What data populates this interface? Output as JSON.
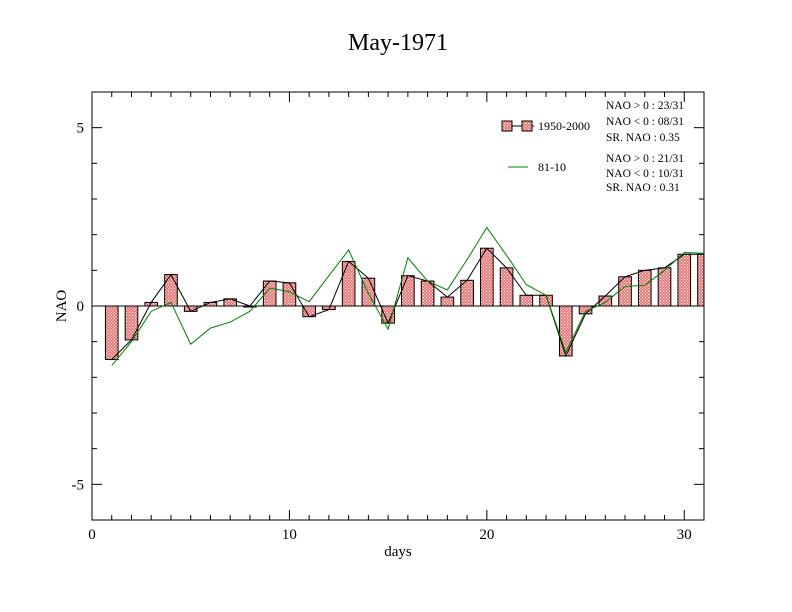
{
  "chart_data": {
    "type": "bar",
    "title": "May-1971",
    "xlabel": "days",
    "ylabel": "NAO",
    "xlim": [
      0,
      31
    ],
    "ylim": [
      -6,
      6
    ],
    "x_ticks": [
      0,
      10,
      20,
      30
    ],
    "y_ticks": [
      -5,
      0,
      5
    ],
    "x_tick_labels": [
      "0",
      "10",
      "20",
      "30"
    ],
    "y_tick_labels": [
      "-5",
      "0",
      "5"
    ],
    "grid": false,
    "legend_position": "top-right",
    "days": [
      1,
      2,
      3,
      4,
      5,
      6,
      7,
      8,
      9,
      10,
      11,
      12,
      13,
      14,
      15,
      16,
      17,
      18,
      19,
      20,
      21,
      22,
      23,
      24,
      25,
      26,
      27,
      28,
      29,
      30,
      31
    ],
    "series": [
      {
        "name": "1950-2000",
        "style": "bars+line",
        "bar_color": "#e87878",
        "line_color": "#000000",
        "values": [
          -1.5,
          -0.95,
          0.1,
          0.88,
          -0.15,
          0.1,
          0.2,
          0.0,
          0.7,
          0.65,
          -0.3,
          -0.1,
          1.25,
          0.78,
          -0.48,
          0.85,
          0.7,
          0.25,
          0.72,
          1.62,
          1.07,
          0.3,
          0.3,
          -1.4,
          -0.22,
          0.28,
          0.82,
          1.0,
          1.07,
          1.45,
          1.45
        ]
      },
      {
        "name": "81-10",
        "style": "line",
        "line_color": "#008000",
        "values": [
          -1.67,
          -1.0,
          -0.15,
          0.1,
          -1.07,
          -0.62,
          -0.45,
          -0.15,
          0.5,
          0.4,
          0.12,
          0.85,
          1.57,
          0.35,
          -0.65,
          1.35,
          0.7,
          0.45,
          1.3,
          2.2,
          1.42,
          0.6,
          0.3,
          -1.3,
          -0.15,
          0.1,
          0.55,
          0.58,
          1.0,
          1.5,
          1.48
        ]
      }
    ],
    "stats": [
      {
        "lines": [
          "NAO > 0 : 23/31",
          "NAO < 0 : 08/31",
          "SR. NAO :  0.35"
        ]
      },
      {
        "lines": [
          "NAO > 0 : 21/31",
          "NAO < 0 : 10/31",
          "SR. NAO :  0.31"
        ]
      }
    ]
  }
}
